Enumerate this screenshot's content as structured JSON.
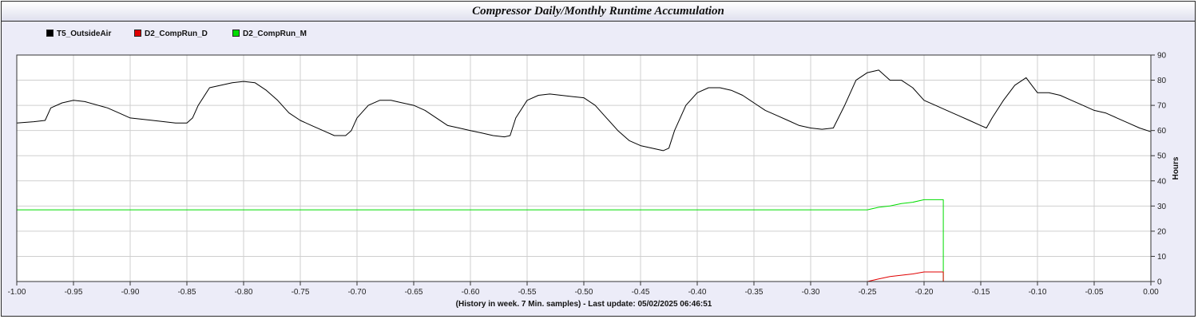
{
  "window": {
    "title": "Compressor Daily/Monthly Runtime Accumulation"
  },
  "footer": {
    "text": "(History in week. 7 Min. samples) - Last update: 05/02/2025 06:46:51"
  },
  "chart_data": {
    "type": "line",
    "title": "Compressor Daily/Monthly Runtime Accumulation",
    "xlabel": "(History in week. 7 Min. samples) - Last update: 05/02/2025 06:46:51",
    "ylabel": "Hours",
    "xlim": [
      -1.0,
      0.0
    ],
    "ylim": [
      0,
      90
    ],
    "x_ticks": [
      "-1.00",
      "-0.95",
      "-0.90",
      "-0.85",
      "-0.80",
      "-0.75",
      "-0.70",
      "-0.65",
      "-0.60",
      "-0.55",
      "-0.50",
      "-0.45",
      "-0.40",
      "-0.35",
      "-0.30",
      "-0.25",
      "-0.20",
      "-0.15",
      "-0.10",
      "-0.05",
      "0.00"
    ],
    "y_ticks": [
      "0",
      "10",
      "20",
      "30",
      "40",
      "50",
      "60",
      "70",
      "80",
      "90"
    ],
    "grid": true,
    "legend_position": "top-left",
    "series": [
      {
        "name": "T5_OutsideAir",
        "color": "#000000",
        "x": [
          -1.0,
          -0.985,
          -0.975,
          -0.97,
          -0.96,
          -0.95,
          -0.94,
          -0.92,
          -0.91,
          -0.9,
          -0.88,
          -0.86,
          -0.85,
          -0.845,
          -0.84,
          -0.83,
          -0.82,
          -0.81,
          -0.8,
          -0.79,
          -0.78,
          -0.77,
          -0.76,
          -0.75,
          -0.74,
          -0.73,
          -0.72,
          -0.71,
          -0.705,
          -0.7,
          -0.69,
          -0.68,
          -0.67,
          -0.66,
          -0.65,
          -0.64,
          -0.63,
          -0.62,
          -0.61,
          -0.6,
          -0.59,
          -0.58,
          -0.57,
          -0.565,
          -0.56,
          -0.55,
          -0.54,
          -0.53,
          -0.52,
          -0.51,
          -0.5,
          -0.49,
          -0.48,
          -0.47,
          -0.46,
          -0.45,
          -0.44,
          -0.43,
          -0.425,
          -0.42,
          -0.41,
          -0.4,
          -0.39,
          -0.38,
          -0.37,
          -0.36,
          -0.35,
          -0.34,
          -0.33,
          -0.32,
          -0.31,
          -0.3,
          -0.29,
          -0.28,
          -0.27,
          -0.26,
          -0.25,
          -0.24,
          -0.235,
          -0.23,
          -0.22,
          -0.21,
          -0.2,
          -0.19,
          -0.18,
          -0.17,
          -0.16,
          -0.15,
          -0.145,
          -0.14,
          -0.13,
          -0.12,
          -0.11,
          -0.105,
          -0.1,
          -0.09,
          -0.08,
          -0.07,
          -0.06,
          -0.05,
          -0.04,
          -0.03,
          -0.02,
          -0.01,
          0.0
        ],
        "values": [
          63,
          63.5,
          64,
          69,
          71,
          72,
          71.5,
          69,
          67,
          65,
          64,
          63,
          63,
          65,
          70,
          77,
          78,
          79,
          79.5,
          79,
          76,
          72,
          67,
          64,
          62,
          60,
          58,
          58,
          60,
          65,
          70,
          72,
          72,
          71,
          70,
          68,
          65,
          62,
          61,
          60,
          59,
          58,
          57.5,
          58,
          65,
          72,
          74,
          74.5,
          74,
          73.5,
          73,
          70,
          65,
          60,
          56,
          54,
          53,
          52,
          53,
          60,
          70,
          75,
          77,
          77,
          76,
          74,
          71,
          68,
          66,
          64,
          62,
          61,
          60.5,
          61,
          70,
          80,
          83,
          84,
          82,
          80,
          80,
          77,
          72,
          70,
          68,
          66,
          64,
          62,
          61,
          65,
          72,
          78,
          81,
          78,
          75,
          75,
          74,
          72,
          70,
          68,
          67,
          65,
          63,
          61,
          59.5
        ]
      },
      {
        "name": "D2_CompRun_D",
        "color": "#e00000",
        "x": [
          -0.25,
          -0.24,
          -0.23,
          -0.22,
          -0.21,
          -0.2,
          -0.19,
          -0.183,
          -0.183
        ],
        "values": [
          0,
          1,
          2,
          2.5,
          3,
          3.8,
          3.8,
          3.8,
          0
        ]
      },
      {
        "name": "D2_CompRun_M",
        "color": "#00dd00",
        "x": [
          -1.0,
          -0.25,
          -0.24,
          -0.23,
          -0.22,
          -0.21,
          -0.2,
          -0.19,
          -0.183,
          -0.183
        ],
        "values": [
          28.5,
          28.5,
          29.5,
          30,
          31,
          31.5,
          32.5,
          32.5,
          32.5,
          0
        ]
      }
    ]
  }
}
